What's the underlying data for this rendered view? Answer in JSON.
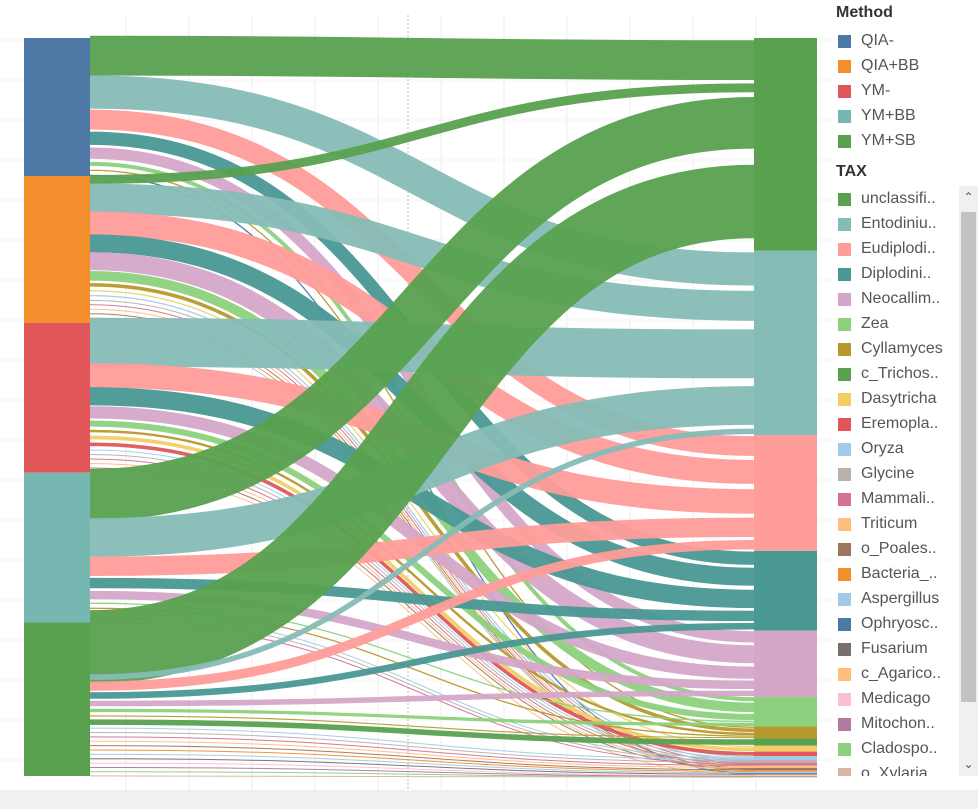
{
  "legend": {
    "method_title": "Method",
    "methods": [
      {
        "label": "QIA-",
        "color": "#4e79a7"
      },
      {
        "label": "QIA+BB",
        "color": "#f28e2b"
      },
      {
        "label": "YM-",
        "color": "#e15759"
      },
      {
        "label": "YM+BB",
        "color": "#76b7b2"
      },
      {
        "label": "YM+SB",
        "color": "#59a14f"
      }
    ],
    "tax_title": "TAX",
    "taxa": [
      {
        "label": "unclassifi..",
        "color": "#59a14f"
      },
      {
        "label": "Entodiniu..",
        "color": "#86bcb6"
      },
      {
        "label": "Eudiplodi..",
        "color": "#ff9d9a"
      },
      {
        "label": "Diplodini..",
        "color": "#499894"
      },
      {
        "label": "Neocallim..",
        "color": "#d4a6c8"
      },
      {
        "label": "Zea",
        "color": "#8cd17d"
      },
      {
        "label": "Cyllamyces",
        "color": "#b6992d"
      },
      {
        "label": "c_Trichos..",
        "color": "#59a14f"
      },
      {
        "label": "Dasytricha",
        "color": "#f1ce63"
      },
      {
        "label": "Eremopla..",
        "color": "#e15759"
      },
      {
        "label": "Oryza",
        "color": "#a0cbe8"
      },
      {
        "label": "Glycine",
        "color": "#bab0ac"
      },
      {
        "label": "Mammali..",
        "color": "#d37295"
      },
      {
        "label": "Triticum",
        "color": "#ffbe7d"
      },
      {
        "label": "o_Poales..",
        "color": "#9d7660"
      },
      {
        "label": "Bacteria_..",
        "color": "#f28e2b"
      },
      {
        "label": "Aspergillus",
        "color": "#a0cbe8"
      },
      {
        "label": "Ophryosc..",
        "color": "#4e79a7"
      },
      {
        "label": "Fusarium",
        "color": "#79706e"
      },
      {
        "label": "c_Agarico..",
        "color": "#ffbe7d"
      },
      {
        "label": "Medicago",
        "color": "#fabfd2"
      },
      {
        "label": "Mitochon..",
        "color": "#b07aa1"
      },
      {
        "label": "Cladospo..",
        "color": "#8cd17d"
      },
      {
        "label": "o_Xylaria..",
        "color": "#d7b5a6"
      }
    ]
  },
  "chart_data": {
    "type": "sankey",
    "sources": [
      "QIA-",
      "QIA+BB",
      "YM-",
      "YM+BB",
      "YM+SB"
    ],
    "source_shares": [
      0.187,
      0.199,
      0.203,
      0.203,
      0.208
    ],
    "targets": [
      "unclassifi..",
      "Entodiniu..",
      "Eudiplodi..",
      "Diplodini..",
      "Neocallim..",
      "Zea",
      "Cyllamyces",
      "c_Trichos..",
      "Dasytricha",
      "Eremopla..",
      "Oryza",
      "Glycine",
      "Mammali..",
      "Triticum",
      "o_Poales..",
      "Bacteria_..",
      "Aspergillus",
      "Ophryosc..",
      "Fusarium",
      "c_Agarico..",
      "Medicago",
      "Mitochon..",
      "Cladospo..",
      "o_Xylaria.."
    ],
    "target_shares": [
      0.288,
      0.25,
      0.157,
      0.108,
      0.09,
      0.04,
      0.016,
      0.01,
      0.008,
      0.006,
      0.005,
      0.004,
      0.004,
      0.003,
      0.003,
      0.002,
      0.002,
      0.001,
      0.001,
      0.001,
      0.001,
      0.001,
      0.0005,
      0.0005
    ],
    "flow_matrix": [
      [
        0.06,
        0.05,
        0.03,
        0.02,
        0.017,
        0.006,
        0.002,
        0.0,
        0.0,
        0.0,
        0.0,
        0.0,
        0.0,
        0.0,
        0.0,
        0.0,
        0.0,
        0.002,
        0.0,
        0.0,
        0.0,
        0.0,
        0.0,
        0.0
      ],
      [
        0.015,
        0.05,
        0.04,
        0.03,
        0.03,
        0.016,
        0.006,
        0.0,
        0.002,
        0.0,
        0.002,
        0.001,
        0.001,
        0.001,
        0.001,
        0.001,
        0.001,
        0.0,
        0.0,
        0.0,
        0.0,
        0.0,
        0.0,
        0.0
      ],
      [
        0.0,
        0.08,
        0.04,
        0.03,
        0.02,
        0.01,
        0.004,
        0.0,
        0.006,
        0.006,
        0.001,
        0.001,
        0.001,
        0.001,
        0.001,
        0.0,
        0.0,
        0.0,
        0.0,
        0.001,
        0.0,
        0.0,
        0.0,
        0.0
      ],
      [
        0.08,
        0.06,
        0.03,
        0.016,
        0.013,
        0.002,
        0.002,
        0.0,
        0.0,
        0.0,
        0.001,
        0.001,
        0.001,
        0.0,
        0.0,
        0.0,
        0.0,
        0.0,
        0.0,
        0.0,
        0.0,
        0.0,
        0.0,
        0.0
      ],
      [
        0.133,
        0.01,
        0.017,
        0.012,
        0.01,
        0.006,
        0.002,
        0.01,
        0.0,
        0.0,
        0.001,
        0.001,
        0.001,
        0.001,
        0.001,
        0.001,
        0.001,
        0.0,
        0.001,
        0.0,
        0.001,
        0.001,
        0.0005,
        0.0005
      ]
    ],
    "legend_position": "right"
  }
}
